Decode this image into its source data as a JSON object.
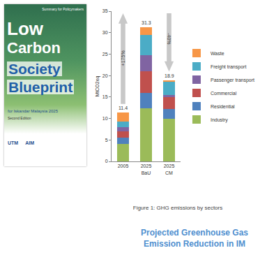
{
  "cover": {
    "header": "Summary for Policymakers",
    "title": [
      "Low",
      "Carbon",
      "Society",
      "Blueprint"
    ],
    "subtitle": "for Iskandar Malaysia 2025",
    "edition": "Second Edition",
    "logos": [
      "UTM",
      "AIM"
    ]
  },
  "chart_data": {
    "type": "bar",
    "stacked": true,
    "categories": [
      "2005",
      "2025 BaU",
      "2025 CM"
    ],
    "series": [
      {
        "name": "Industry",
        "color": "#9bbb59",
        "values": [
          4.0,
          12.3,
          10.0
        ]
      },
      {
        "name": "Residential",
        "color": "#4f81bd",
        "values": [
          1.5,
          3.7,
          2.2
        ]
      },
      {
        "name": "Commercial",
        "color": "#c0504d",
        "values": [
          1.5,
          5.0,
          2.8
        ]
      },
      {
        "name": "Passenger transport",
        "color": "#8064a2",
        "values": [
          1.0,
          3.7,
          0.5
        ]
      },
      {
        "name": "Freight transport",
        "color": "#4bacc6",
        "values": [
          1.2,
          4.8,
          3.0
        ]
      },
      {
        "name": "Waste",
        "color": "#f79646",
        "values": [
          2.2,
          1.8,
          0.4
        ]
      }
    ],
    "totals": [
      11.4,
      31.3,
      18.9
    ],
    "change_labels": [
      {
        "value": 175,
        "label": "+175%"
      },
      {
        "value": -40,
        "label": "-40%"
      }
    ],
    "ylabel": "MtCO2eq",
    "ylim": [
      0,
      35
    ],
    "yticks": [
      0,
      5,
      10,
      15,
      20,
      25,
      30,
      35
    ],
    "grid": false,
    "legend": "right"
  },
  "caption": "Figure 1: GHG emissions by sectors",
  "heading": "Projected Greenhouse Gas Emission Reduction in IM"
}
